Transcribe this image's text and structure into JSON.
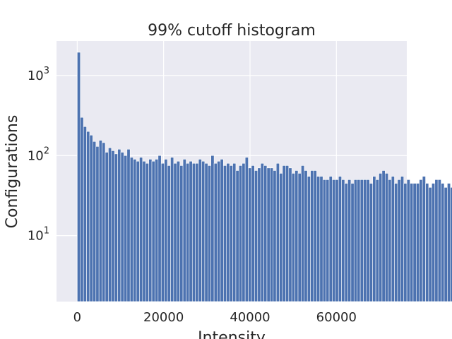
{
  "chart_data": {
    "type": "bar",
    "title": "99% cutoff histogram",
    "xlabel": "Intensity",
    "ylabel": "Configurations",
    "y_scale": "log",
    "xlim": [
      -4800,
      76300
    ],
    "ylim": [
      1.5,
      2700
    ],
    "grid": true,
    "bar_color": "#4c72b0",
    "background_color": "#eaeaf2",
    "grid_color": "#ffffff",
    "x_ticks": [
      {
        "value": 0,
        "label": "0"
      },
      {
        "value": 20000,
        "label": "20000"
      },
      {
        "value": 40000,
        "label": "40000"
      },
      {
        "value": 60000,
        "label": "60000"
      }
    ],
    "y_ticks": [
      {
        "value": 10,
        "base": "10",
        "exp": "1"
      },
      {
        "value": 100,
        "base": "10",
        "exp": "2"
      },
      {
        "value": 1000,
        "base": "10",
        "exp": "3"
      }
    ],
    "bin_start": 0,
    "bin_width": 720,
    "values": [
      1950,
      300,
      230,
      200,
      180,
      150,
      130,
      155,
      145,
      110,
      125,
      115,
      105,
      120,
      110,
      100,
      120,
      95,
      90,
      85,
      95,
      85,
      80,
      90,
      85,
      90,
      100,
      80,
      90,
      75,
      95,
      80,
      85,
      75,
      90,
      80,
      85,
      80,
      80,
      90,
      85,
      80,
      75,
      100,
      80,
      85,
      90,
      75,
      80,
      75,
      80,
      65,
      75,
      80,
      95,
      70,
      75,
      65,
      70,
      80,
      75,
      70,
      70,
      65,
      80,
      60,
      75,
      75,
      70,
      60,
      65,
      60,
      75,
      65,
      55,
      65,
      65,
      55,
      55,
      50,
      50,
      55,
      50,
      50,
      55,
      50,
      45,
      50,
      45,
      50,
      50,
      50,
      50,
      50,
      45,
      55,
      50,
      60,
      65,
      60,
      50,
      55,
      45,
      50,
      55,
      45,
      50,
      45,
      45,
      45,
      50,
      55,
      45,
      40,
      45,
      50,
      50,
      45,
      40,
      45,
      40,
      45
    ]
  }
}
